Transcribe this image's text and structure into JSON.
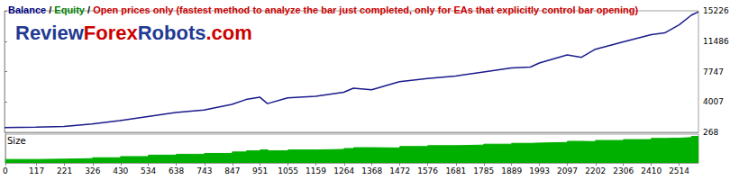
{
  "chart_data": {
    "type": "line",
    "header": [
      {
        "text": "Balance",
        "color": "#000080"
      },
      {
        "text": " / ",
        "color": "#000000"
      },
      {
        "text": "Equity",
        "color": "#008000"
      },
      {
        "text": " / ",
        "color": "#000000"
      },
      {
        "text": "Open prices only (fastest method to analyze the bar just completed, only for EAs that explicitly control bar opening)",
        "color": "#cc0000"
      }
    ],
    "watermark": [
      {
        "text": "Review",
        "color": "#1f3a93"
      },
      {
        "text": "Forex",
        "color": "#cc0000"
      },
      {
        "text": "Robots",
        "color": "#1f3a93"
      },
      {
        "text": ".com",
        "color": "#cc0000"
      }
    ],
    "x": [
      0,
      117,
      221,
      326,
      430,
      534,
      638,
      743,
      847,
      900,
      951,
      980,
      1055,
      1159,
      1264,
      1300,
      1368,
      1472,
      1576,
      1681,
      1785,
      1889,
      1960,
      1993,
      2097,
      2150,
      2202,
      2306,
      2410,
      2460,
      2514,
      2560,
      2586
    ],
    "series": [
      {
        "name": "Balance",
        "color": "#1a1a8c",
        "values": [
          850,
          900,
          1000,
          1300,
          1700,
          2200,
          2700,
          3000,
          3700,
          4300,
          4600,
          3800,
          4500,
          4700,
          5200,
          5700,
          5500,
          6500,
          6900,
          7200,
          7700,
          8200,
          8300,
          8800,
          9800,
          9500,
          10500,
          11400,
          12300,
          12500,
          13500,
          14700,
          15100
        ]
      }
    ],
    "xlim": [
      0,
      2586
    ],
    "xticks": [
      0,
      117,
      221,
      326,
      430,
      534,
      638,
      743,
      847,
      951,
      1055,
      1159,
      1264,
      1368,
      1472,
      1576,
      1681,
      1785,
      1889,
      1993,
      2097,
      2202,
      2306,
      2410,
      2514
    ],
    "ylim": [
      268,
      15226
    ],
    "yticks": [
      268,
      4007,
      7747,
      11486,
      15226
    ],
    "grid": false,
    "size": {
      "title": "Size",
      "color": "#00b000",
      "ylim": [
        0,
        1
      ],
      "values": [
        0.12,
        0.13,
        0.15,
        0.18,
        0.22,
        0.27,
        0.3,
        0.33,
        0.38,
        0.42,
        0.45,
        0.42,
        0.45,
        0.47,
        0.5,
        0.53,
        0.52,
        0.57,
        0.6,
        0.62,
        0.65,
        0.68,
        0.69,
        0.71,
        0.75,
        0.74,
        0.78,
        0.81,
        0.85,
        0.86,
        0.88,
        0.92,
        0.93
      ]
    }
  }
}
